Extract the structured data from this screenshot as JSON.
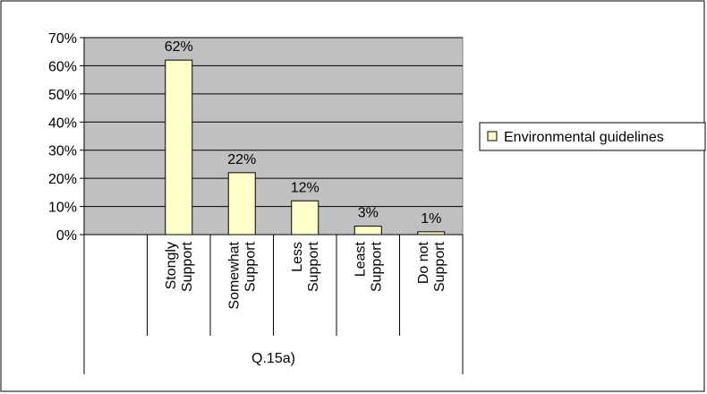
{
  "chart_data": {
    "type": "bar",
    "categories": [
      [
        "Stongly",
        "Support"
      ],
      [
        "Somewhat",
        "Support"
      ],
      [
        "Less",
        "Support"
      ],
      [
        "Least",
        "Support"
      ],
      [
        "Do not",
        "Support"
      ]
    ],
    "series": [
      {
        "name": "Environmental guidelines",
        "values": [
          62,
          22,
          12,
          3,
          1
        ],
        "labels": [
          "62%",
          "22%",
          "12%",
          "3%",
          "1%"
        ]
      }
    ],
    "y_ticks": [
      "0%",
      "10%",
      "20%",
      "30%",
      "40%",
      "50%",
      "60%",
      "70%"
    ],
    "ylim": [
      0,
      70
    ],
    "xlabel": "Q.15a)",
    "ylabel": "",
    "title": "",
    "grid": true,
    "legend_position": "right",
    "colors": {
      "plot_background": "#c0c0c0",
      "bar_fill": "#ffffcc",
      "bar_stroke": "#000000",
      "gridline": "#000000"
    }
  }
}
